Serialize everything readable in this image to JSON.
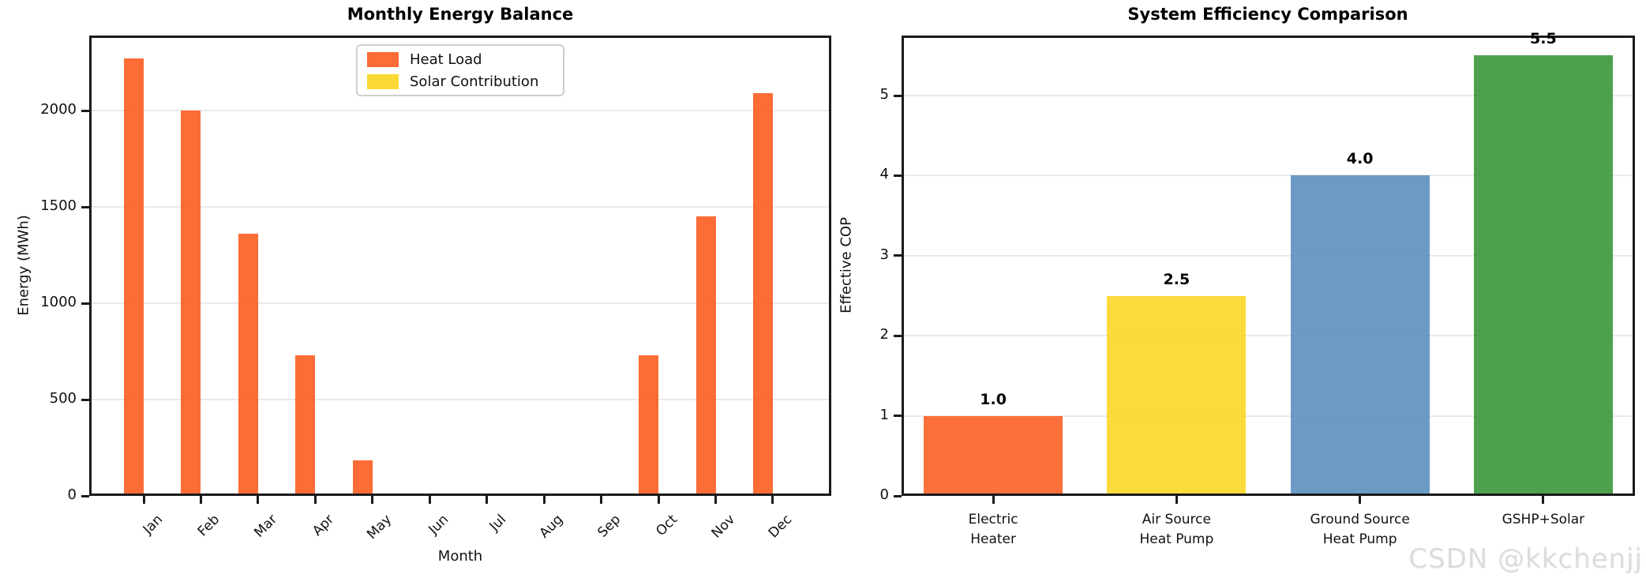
{
  "figure": {
    "watermark": "CSDN @kkchenjj",
    "background": "#ffffff"
  },
  "colors": {
    "heat_load": "#FC6D36",
    "solar": "#FAD936",
    "blue": "#699AC4",
    "green": "#4CA14C",
    "grid": "#E9E9E9",
    "spine": "#1A1A1A",
    "watermark_gray": "#DCDCDC"
  },
  "chart_data": [
    {
      "type": "bar",
      "title": "Monthly Energy Balance",
      "xlabel": "Month",
      "ylabel": "Energy (MWh)",
      "categories": [
        "Jan",
        "Feb",
        "Mar",
        "Apr",
        "May",
        "Jun",
        "Jul",
        "Aug",
        "Sep",
        "Oct",
        "Nov",
        "Dec"
      ],
      "series": [
        {
          "name": "Heat Load",
          "color": "#FC5C20",
          "values": [
            2270,
            2000,
            1360,
            730,
            185,
            0,
            0,
            0,
            0,
            730,
            1450,
            2090
          ]
        },
        {
          "name": "Solar Contribution",
          "color": "#FAD520",
          "values": [
            0,
            0,
            0,
            10,
            12,
            0,
            0,
            0,
            0,
            0,
            0,
            0
          ]
        }
      ],
      "ylim": [
        0,
        2390
      ],
      "yticks": [
        0,
        500,
        1000,
        1500,
        2000
      ],
      "grid": "horizontal",
      "legend": [
        "Heat Load",
        "Solar Contribution"
      ],
      "legend_position": "upper left-center"
    },
    {
      "type": "bar",
      "title": "System Efficiency Comparison",
      "xlabel": "",
      "ylabel": "Effective COP",
      "categories": [
        "Electric\nHeater",
        "Air Source\nHeat Pump",
        "Ground Source\nHeat Pump",
        "GSHP+Solar"
      ],
      "values": [
        1.0,
        2.5,
        4.0,
        5.5
      ],
      "value_labels": [
        "1.0",
        "2.5",
        "4.0",
        "5.5"
      ],
      "bar_colors": [
        "#FC5C20",
        "#FAD520",
        "#568CBC",
        "#349434"
      ],
      "ylim": [
        0,
        5.75
      ],
      "yticks": [
        0,
        1,
        2,
        3,
        4,
        5
      ],
      "grid": "horizontal"
    }
  ]
}
